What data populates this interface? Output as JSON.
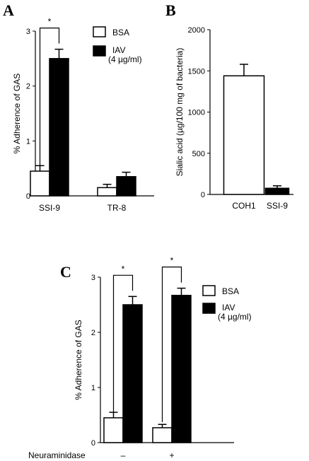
{
  "chart_data": [
    {
      "panel": "A",
      "type": "bar",
      "ylabel": "% Adherence of GAS",
      "ylim": [
        0,
        3
      ],
      "yticks": [
        "0",
        "1",
        "2",
        "3"
      ],
      "categories": [
        "SSI-9",
        "TR-8"
      ],
      "series": [
        {
          "name": "BSA",
          "values": [
            0.45,
            0.15
          ],
          "errors": [
            0.1,
            0.06
          ],
          "color": "#ffffff"
        },
        {
          "name": "IAV (4 µg/ml)",
          "values": [
            2.5,
            0.35
          ],
          "errors": [
            0.17,
            0.08
          ],
          "color": "#000000"
        }
      ],
      "legend": {
        "placement": "top-right",
        "items": [
          "BSA",
          "IAV",
          "(4 µg/ml)"
        ]
      },
      "annotations": [
        {
          "text": "*",
          "category": "SSI-9"
        }
      ],
      "grid": false
    },
    {
      "panel": "B",
      "type": "bar",
      "ylabel": "Sialic acid (µg/100 mg of bacteria)",
      "ylim": [
        0,
        2000
      ],
      "yticks": [
        "0",
        "500",
        "1000",
        "1500",
        "2000"
      ],
      "categories": [
        "COH1",
        "SSI-9"
      ],
      "series": [
        {
          "values": [
            1440,
            75
          ],
          "errors": [
            140,
            30
          ],
          "colors": [
            "#ffffff",
            "#000000"
          ]
        }
      ],
      "grid": false
    },
    {
      "panel": "C",
      "type": "bar",
      "ylabel": "% Adherence of GAS",
      "ylim": [
        0,
        3
      ],
      "yticks": [
        "0",
        "1",
        "2",
        "3"
      ],
      "xlabel": "Neuraminidase",
      "categories": [
        "–",
        "+"
      ],
      "series": [
        {
          "name": "BSA",
          "values": [
            0.45,
            0.27
          ],
          "errors": [
            0.1,
            0.06
          ],
          "color": "#ffffff"
        },
        {
          "name": "IAV (4 µg/ml)",
          "values": [
            2.5,
            2.67
          ],
          "errors": [
            0.15,
            0.13
          ],
          "color": "#000000"
        }
      ],
      "legend": {
        "placement": "top-right",
        "items": [
          "BSA",
          "IAV",
          "(4 µg/ml)"
        ]
      },
      "annotations": [
        {
          "text": "*",
          "category": "–"
        },
        {
          "text": "*",
          "category": "+"
        }
      ],
      "grid": false
    }
  ]
}
